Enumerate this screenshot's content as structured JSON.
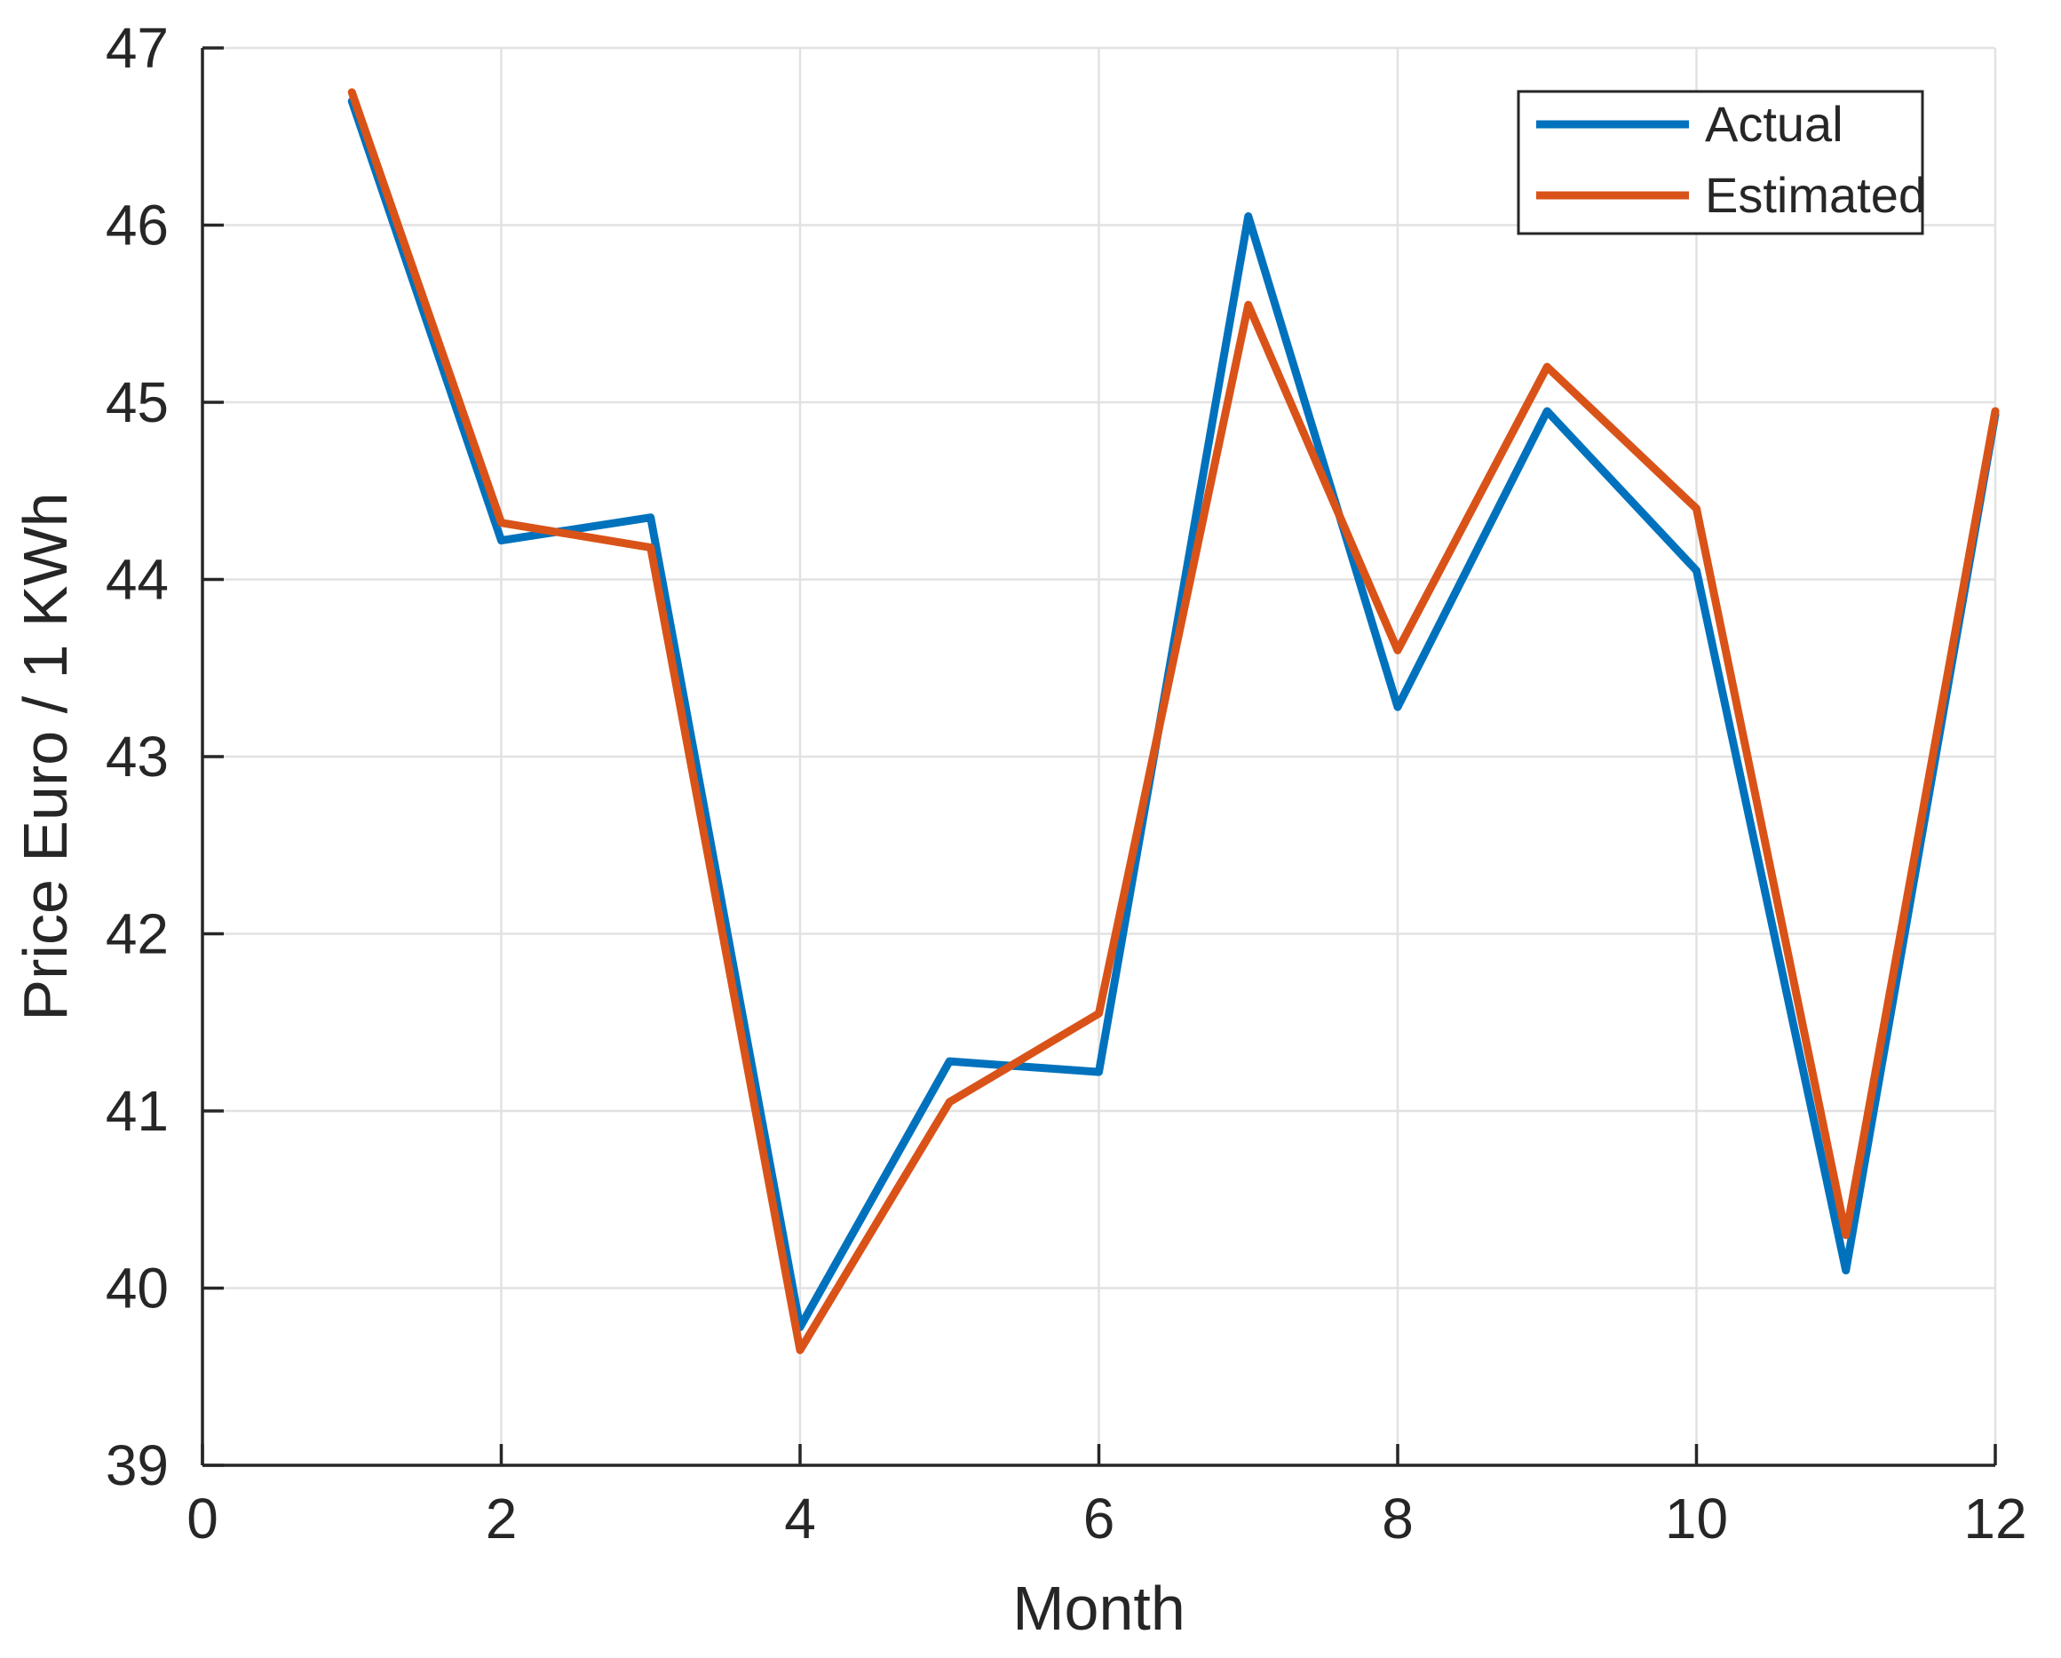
{
  "chart_data": {
    "type": "line",
    "title": "",
    "xlabel": "Month",
    "ylabel": "Price Euro / 1 KWh",
    "xlim": [
      0,
      12
    ],
    "ylim": [
      39,
      47
    ],
    "xticks": [
      0,
      2,
      4,
      6,
      8,
      10,
      12
    ],
    "yticks": [
      39,
      40,
      41,
      42,
      43,
      44,
      45,
      46,
      47
    ],
    "grid": true,
    "legend_position": "top-right",
    "x": [
      1,
      2,
      3,
      4,
      5,
      6,
      7,
      8,
      9,
      10,
      11,
      12
    ],
    "series": [
      {
        "name": "Actual",
        "color": "#0072BD",
        "values": [
          46.7,
          44.22,
          44.35,
          39.78,
          41.28,
          41.22,
          46.05,
          43.28,
          44.95,
          44.05,
          40.1,
          44.93
        ]
      },
      {
        "name": "Estimated",
        "color": "#D95319",
        "values": [
          46.75,
          44.32,
          44.18,
          39.65,
          41.05,
          41.55,
          45.55,
          43.6,
          45.2,
          44.4,
          40.3,
          44.95
        ]
      }
    ],
    "style": {
      "grid_color": "#E2E2E2",
      "axis_color": "#262626",
      "text_color": "#262626",
      "background": "#ffffff"
    }
  }
}
